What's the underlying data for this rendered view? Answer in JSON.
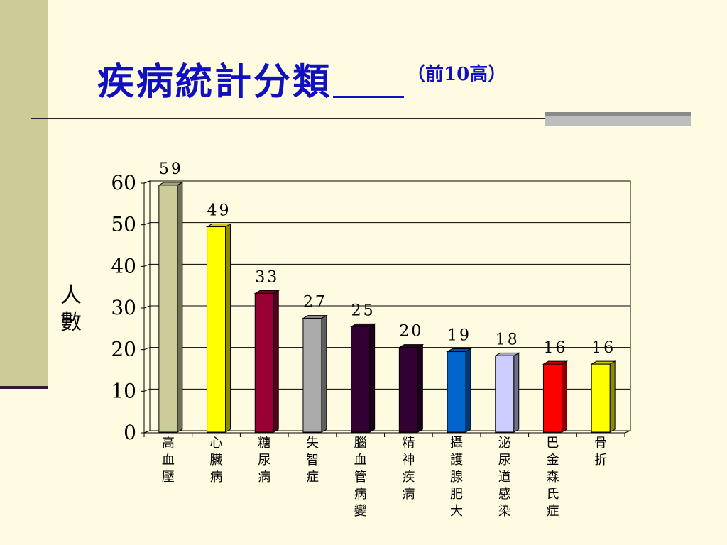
{
  "slide": {
    "title_main": "疾病統計分類",
    "title_sub": "（前10高）"
  },
  "colors": {
    "background": "#fffbe0",
    "side_band": "#cccc99",
    "title": "#1010c0"
  },
  "chart_data": {
    "type": "bar",
    "title": "",
    "ylabel": "人數",
    "xlabel": "",
    "ylim": [
      0,
      60
    ],
    "yticks": [
      "0",
      "10",
      "20",
      "30",
      "40",
      "50",
      "60"
    ],
    "grid": true,
    "categories": [
      "高血壓",
      "心臟病",
      "糖尿病",
      "失智症",
      "腦血管病變",
      "精神疾病",
      "攝護腺肥大",
      "泌尿道感染",
      "巴金森氏症",
      "骨折"
    ],
    "values": [
      59,
      49,
      33,
      27,
      25,
      20,
      19,
      18,
      16,
      16
    ],
    "data_labels": [
      "59",
      "49",
      "33",
      "27",
      "25",
      "20",
      "19",
      "18",
      "16",
      "16"
    ],
    "bar_colors": [
      "#cccc99",
      "#ffff00",
      "#990033",
      "#aaaaaa",
      "#330033",
      "#330033",
      "#0066cc",
      "#ccccff",
      "#ff0000",
      "#ffff00"
    ]
  }
}
